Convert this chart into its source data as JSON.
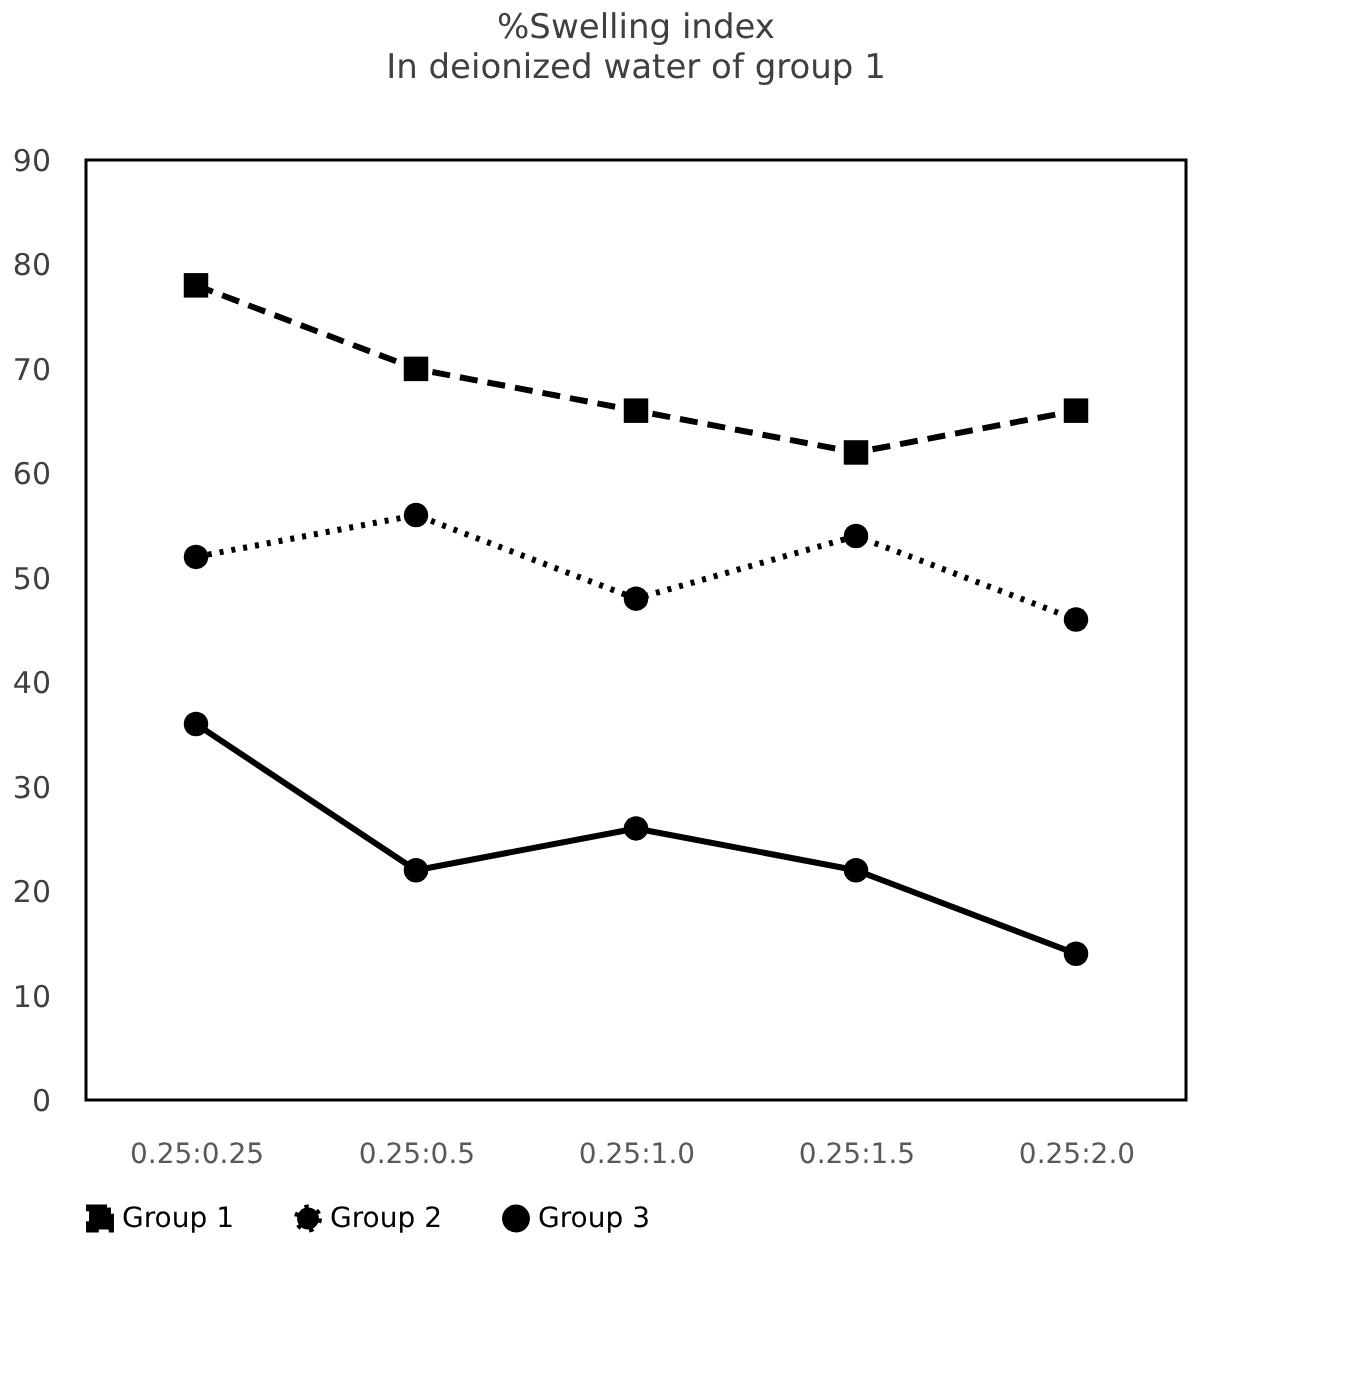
{
  "chart_data": {
    "type": "line",
    "title": "%Swelling index",
    "subtitle": "In deionized water of group 1",
    "categories": [
      "0.25:0.25",
      "0.25:0.5",
      "0.25:1.0",
      "0.25:1.5",
      "0.25:2.0"
    ],
    "series": [
      {
        "name": "Group 1",
        "color": "#000000",
        "values": [
          78,
          70,
          66,
          62,
          66
        ],
        "line_style": "dashed",
        "marker": "square"
      },
      {
        "name": "Group 2",
        "color": "#000000",
        "values": [
          52,
          56,
          48,
          54,
          46
        ],
        "line_style": "dotted",
        "marker": "circle"
      },
      {
        "name": "Group 3",
        "color": "#000000",
        "values": [
          36,
          22,
          26,
          22,
          14
        ],
        "line_style": "solid",
        "marker": "circle"
      }
    ],
    "ylim": [
      0,
      90
    ],
    "yticks": [
      0,
      10,
      20,
      30,
      40,
      50,
      60,
      70,
      80,
      90
    ],
    "grid": false,
    "legend": "bottom"
  }
}
